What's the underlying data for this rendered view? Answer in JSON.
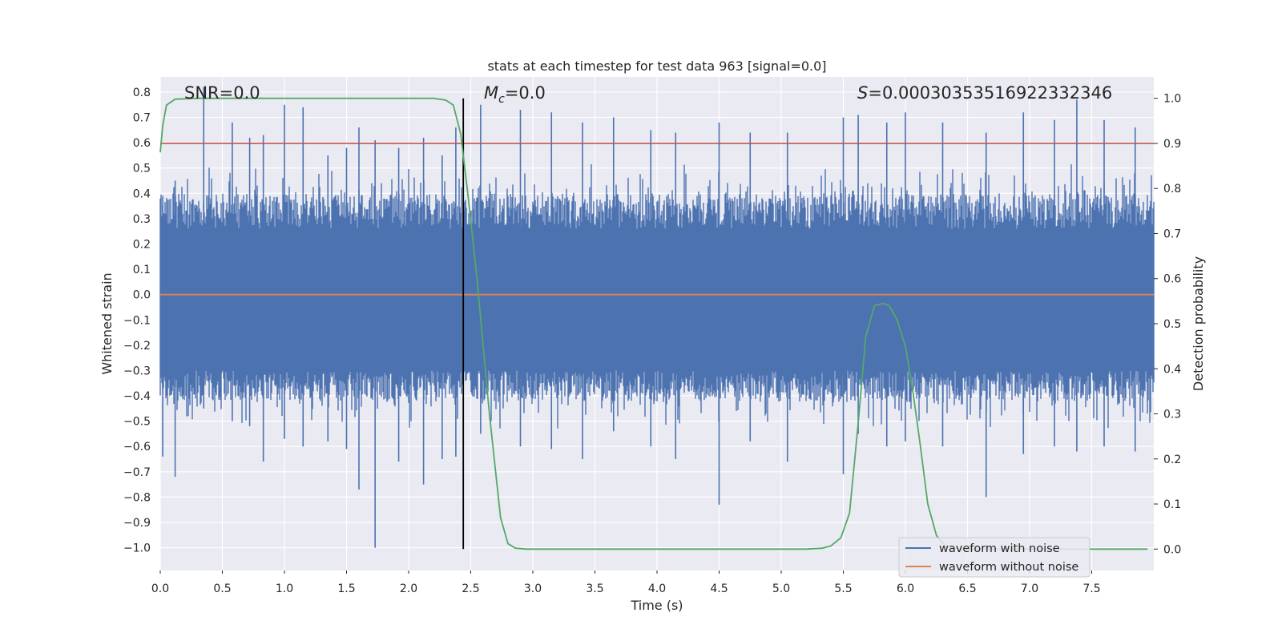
{
  "chart_data": {
    "type": "line",
    "title": "stats at each timestep for test data 963 [signal=0.0]",
    "xlabel": "Time (s)",
    "ylabel": "Whitened strain",
    "y2label": "Detection probability",
    "xlim": [
      0.0,
      8.0
    ],
    "ylim": [
      -1.09,
      0.86
    ],
    "y2lim": [
      -0.0475,
      1.0475
    ],
    "xticks": [
      "0.0",
      "0.5",
      "1.0",
      "1.5",
      "2.0",
      "2.5",
      "3.0",
      "3.5",
      "4.0",
      "4.5",
      "5.0",
      "5.5",
      "6.0",
      "6.5",
      "7.0",
      "7.5"
    ],
    "yticks": [
      "0.8",
      "0.7",
      "0.6",
      "0.5",
      "0.4",
      "0.3",
      "0.2",
      "0.1",
      "0.0",
      "−0.1",
      "−0.2",
      "−0.3",
      "−0.4",
      "−0.5",
      "−0.6",
      "−0.7",
      "−0.8",
      "−0.9",
      "−1.0"
    ],
    "y2ticks": [
      "1.0",
      "0.9",
      "0.8",
      "0.7",
      "0.6",
      "0.5",
      "0.4",
      "0.3",
      "0.2",
      "0.1",
      "0.0"
    ],
    "annotations": {
      "snr": "SNR=0.0",
      "mc_symbol": "M",
      "mc_sub": "c",
      "mc_value": "=0.0",
      "s_symbol": "S",
      "s_value": "=0.0003035351692233​2346"
    },
    "vline_x": 2.44,
    "threshold_y2": 0.9,
    "series": [
      {
        "name": "waveform with noise",
        "color": "#4c72b0",
        "style": "dense noise, envelope approx ±0.45, spikes to +0.8 / −1.0",
        "spikes": [
          [
            0.02,
            0.39,
            -0.64
          ],
          [
            0.12,
            0.45,
            -0.72
          ],
          [
            0.35,
            0.82,
            -0.45
          ],
          [
            0.58,
            0.68,
            -0.5
          ],
          [
            0.72,
            0.62,
            -0.52
          ],
          [
            0.83,
            0.63,
            -0.66
          ],
          [
            1.0,
            0.75,
            -0.57
          ],
          [
            1.15,
            0.74,
            -0.6
          ],
          [
            1.35,
            0.55,
            -0.58
          ],
          [
            1.5,
            0.58,
            -0.61
          ],
          [
            1.6,
            0.66,
            -0.77
          ],
          [
            1.73,
            0.61,
            -1.0
          ],
          [
            1.92,
            0.58,
            -0.66
          ],
          [
            2.12,
            0.62,
            -0.75
          ],
          [
            2.27,
            0.55,
            -0.65
          ],
          [
            2.38,
            0.66,
            -0.64
          ],
          [
            2.58,
            0.75,
            -0.55
          ],
          [
            2.9,
            0.73,
            -0.6
          ],
          [
            3.15,
            0.72,
            -0.61
          ],
          [
            3.4,
            0.68,
            -0.65
          ],
          [
            3.65,
            0.7,
            -0.54
          ],
          [
            3.95,
            0.65,
            -0.6
          ],
          [
            4.15,
            0.64,
            -0.65
          ],
          [
            4.5,
            0.68,
            -0.83
          ],
          [
            4.75,
            0.64,
            -0.58
          ],
          [
            5.05,
            0.64,
            -0.66
          ],
          [
            5.5,
            0.7,
            -0.71
          ],
          [
            5.62,
            0.71,
            -0.55
          ],
          [
            5.85,
            0.68,
            -0.6
          ],
          [
            6.0,
            0.72,
            -0.58
          ],
          [
            6.3,
            0.68,
            -0.6
          ],
          [
            6.65,
            0.64,
            -0.8
          ],
          [
            6.95,
            0.72,
            -0.63
          ],
          [
            7.2,
            0.69,
            -0.6
          ],
          [
            7.38,
            0.77,
            -0.62
          ],
          [
            7.6,
            0.69,
            -0.6
          ],
          [
            7.85,
            0.66,
            -0.62
          ]
        ]
      },
      {
        "name": "waveform without noise",
        "color": "#dd8452",
        "x": [
          0.0,
          8.0
        ],
        "y": [
          0.0,
          0.0
        ]
      },
      {
        "name": "detection probability",
        "color": "#55a868",
        "axis": "right",
        "x": [
          0.0,
          0.02,
          0.05,
          0.12,
          0.3,
          1.0,
          2.0,
          2.2,
          2.3,
          2.36,
          2.42,
          2.48,
          2.55,
          2.65,
          2.74,
          2.8,
          2.86,
          2.95,
          3.5,
          4.5,
          5.2,
          5.33,
          5.4,
          5.48,
          5.55,
          5.62,
          5.68,
          5.75,
          5.82,
          5.87,
          5.93,
          6.0,
          6.06,
          6.12,
          6.18,
          6.25,
          6.32,
          6.4,
          6.5,
          7.0,
          7.95
        ],
        "y": [
          0.88,
          0.94,
          0.985,
          0.998,
          1.0,
          1.0,
          1.0,
          1.0,
          0.996,
          0.985,
          0.92,
          0.78,
          0.6,
          0.3,
          0.07,
          0.012,
          0.002,
          0.0,
          0.0,
          0.0,
          0.0,
          0.002,
          0.007,
          0.025,
          0.08,
          0.28,
          0.47,
          0.54,
          0.545,
          0.54,
          0.51,
          0.45,
          0.35,
          0.23,
          0.1,
          0.03,
          0.008,
          0.001,
          0.0,
          0.0,
          0.0
        ]
      }
    ],
    "legend": {
      "position": "lower right",
      "entries": [
        {
          "label": "waveform with noise",
          "color": "#4c72b0"
        },
        {
          "label": "waveform without noise",
          "color": "#dd8452"
        }
      ]
    },
    "colors": {
      "plot_bg": "#eaeaf2",
      "grid": "#ffffff",
      "threshold": "#c44e52",
      "vline": "#000000"
    }
  }
}
